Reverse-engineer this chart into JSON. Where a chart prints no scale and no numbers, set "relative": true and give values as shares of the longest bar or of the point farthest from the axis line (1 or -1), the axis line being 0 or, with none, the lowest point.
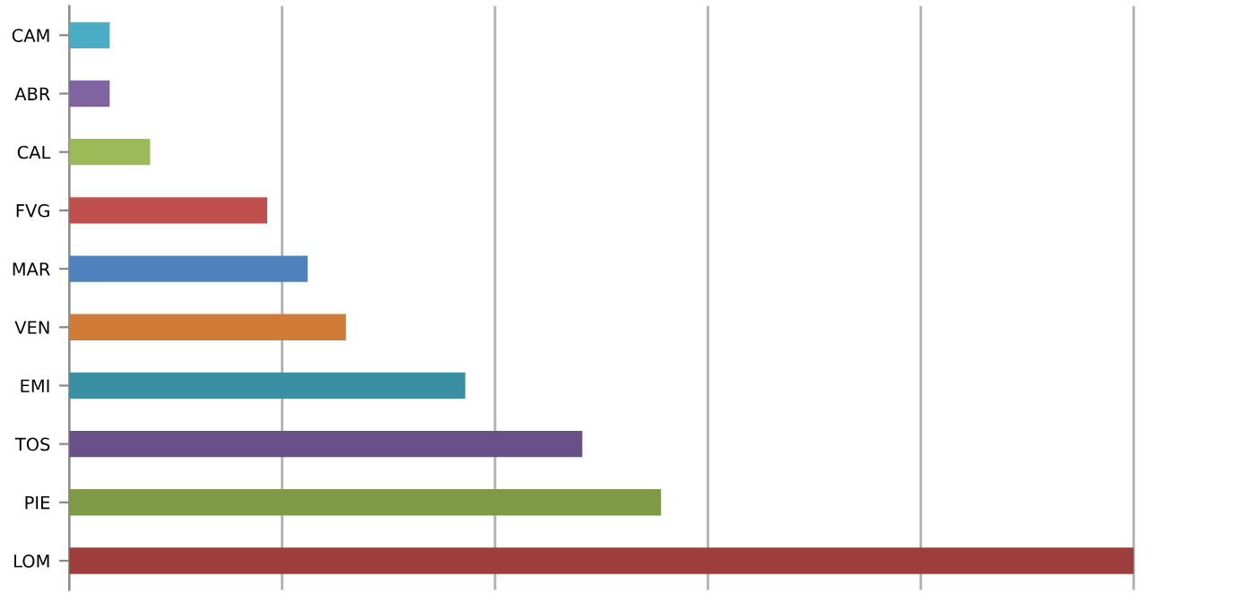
{
  "chart_data": {
    "type": "bar",
    "orientation": "horizontal",
    "relative": true,
    "grid": "x",
    "categories": [
      "CAM",
      "ABR",
      "CAL",
      "FVG",
      "MAR",
      "VEN",
      "EMI",
      "TOS",
      "PIE",
      "LOM"
    ],
    "values": [
      0.038,
      0.038,
      0.076,
      0.186,
      0.224,
      0.26,
      0.372,
      0.482,
      0.556,
      1
    ],
    "colors": [
      "#4bacc6",
      "#8064a2",
      "#9bbb59",
      "#c0504d",
      "#4f81bd",
      "#d07c38",
      "#3a8fa3",
      "#6a5088",
      "#7f9a45",
      "#9e3e3c"
    ]
  }
}
